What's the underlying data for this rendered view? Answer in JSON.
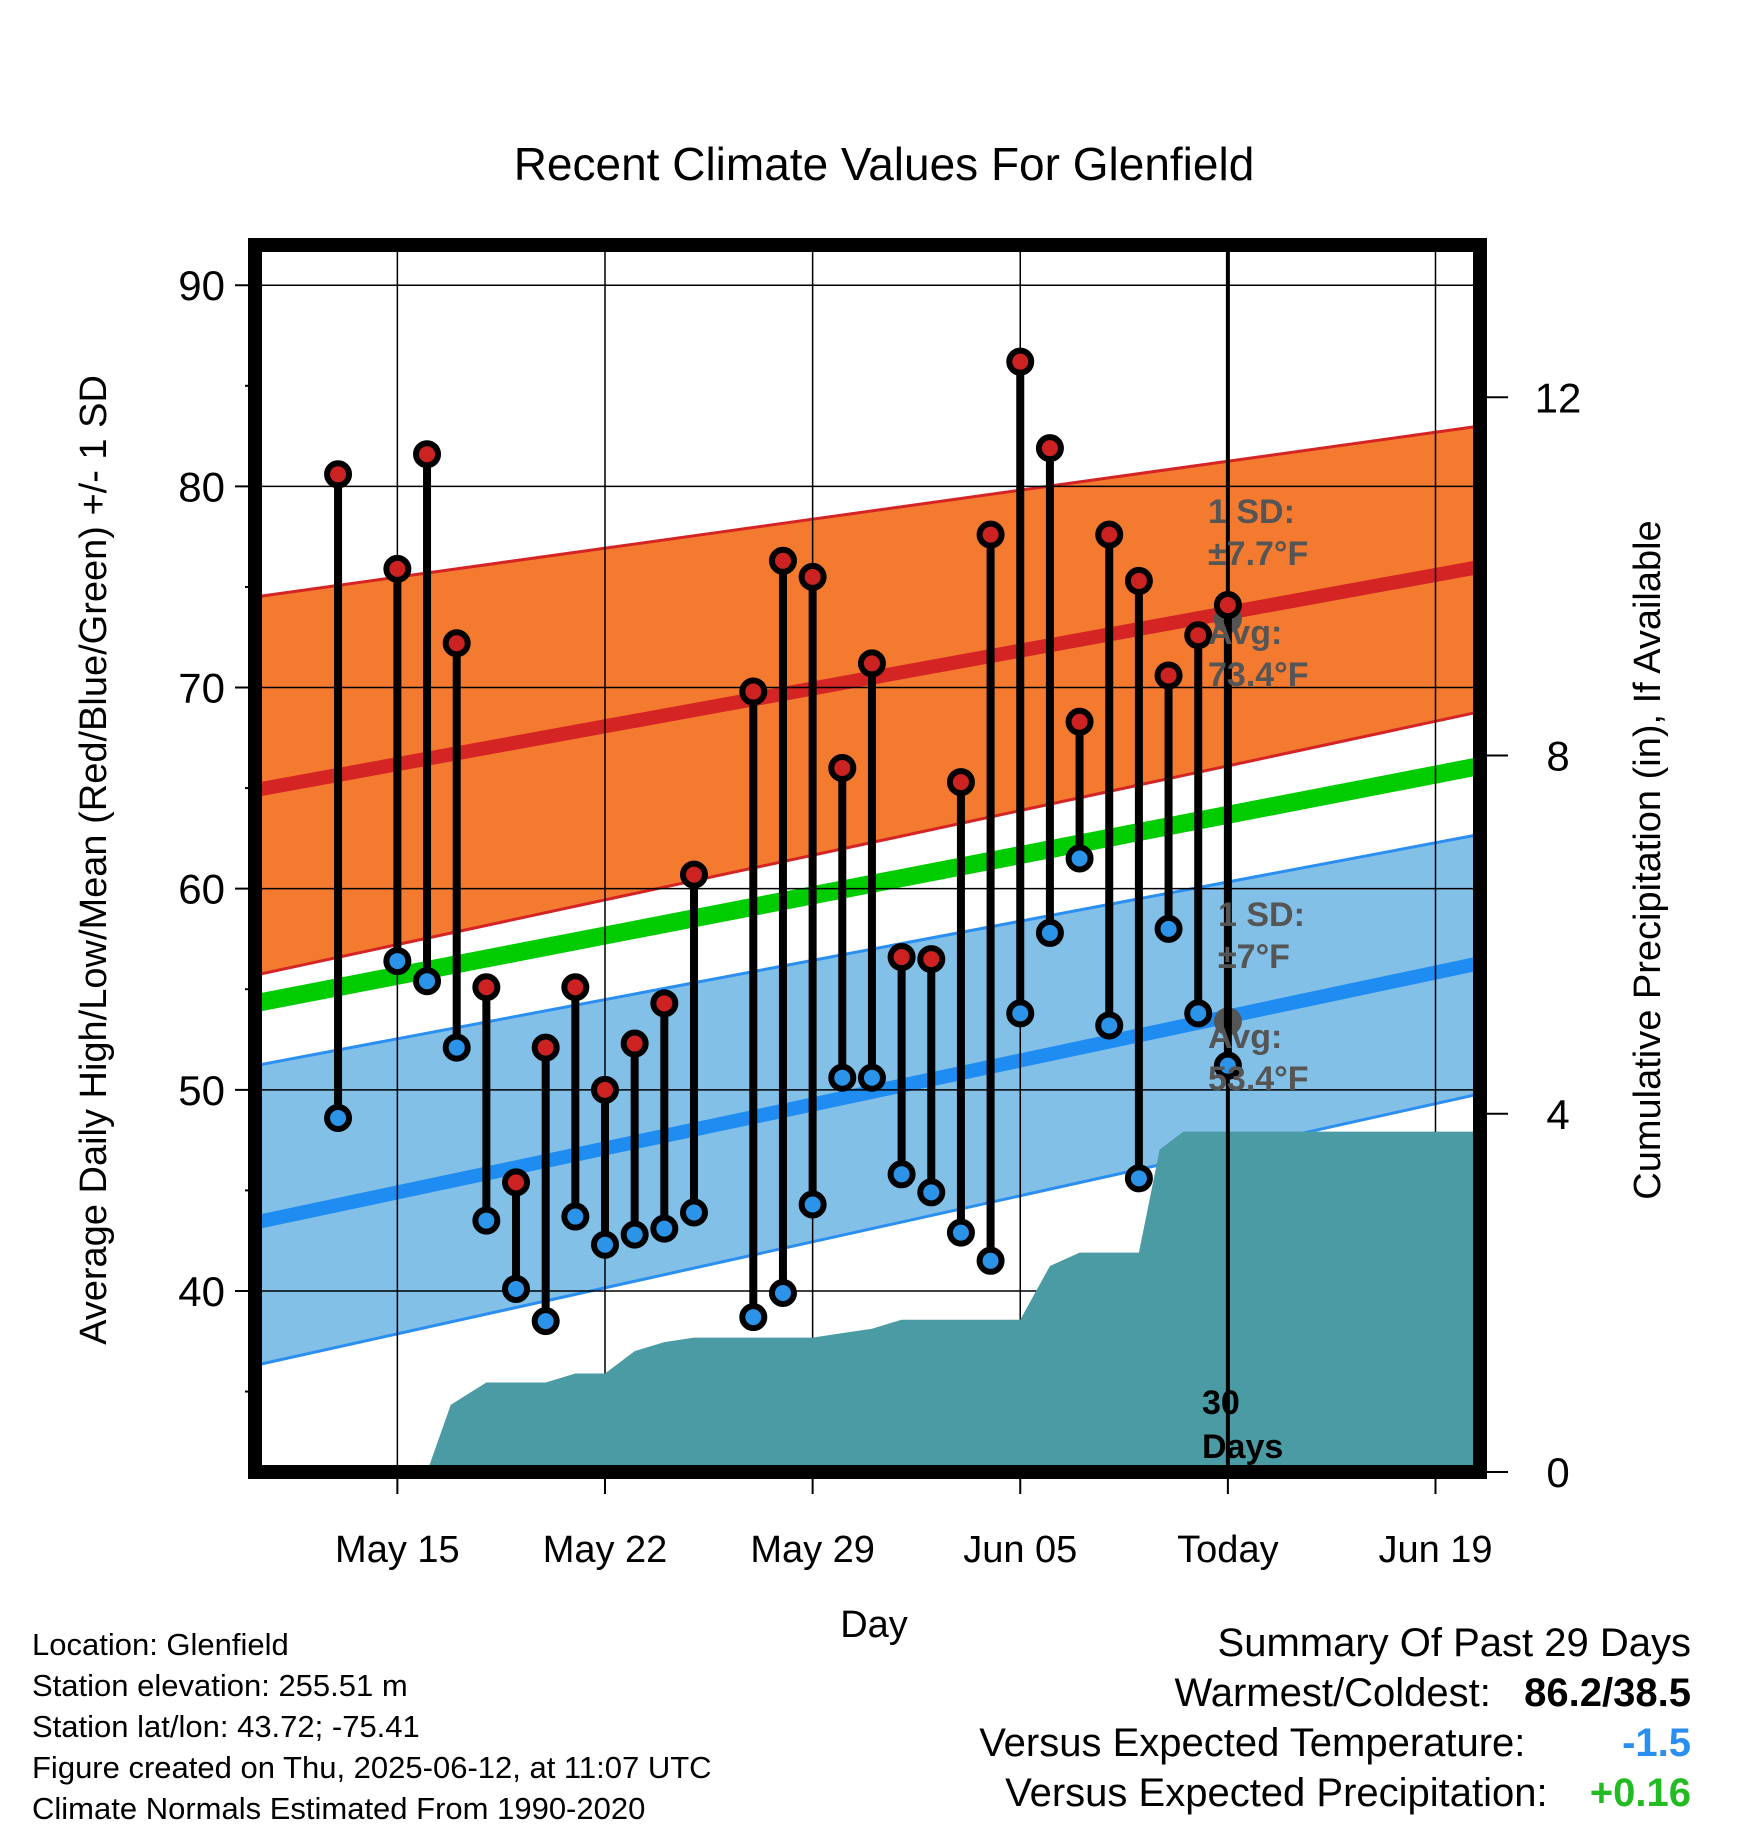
{
  "colors": {
    "high_dot": "#cc2222",
    "low_dot": "#2b94e8",
    "high_band": "#f47a30",
    "high_band_edge": "#d42424",
    "high_avg_line": "#d42424",
    "low_band": "#82c0e8",
    "low_band_edge": "#2a8ff0",
    "low_avg_line": "#1e8cf0",
    "mean_line": "#00cc00",
    "precip_fill": "#4a9ba4",
    "today_marker": "#555555",
    "annotation_text": "#555555",
    "temp_anomaly": "#2a8ff0",
    "precip_anomaly": "#22bb22"
  },
  "chart_data": {
    "type": "line",
    "title": "Recent Climate Values For Glenfield",
    "xlabel": "Day",
    "ylabel": "Average Daily High/Low/Mean (Red/Blue/Green) +/- 1 SD",
    "y2label": "Cumulative Precipitation (in), If Available",
    "xlim_days": [
      -32.8,
      8.5
    ],
    "ylim": [
      31,
      92
    ],
    "y2lim": [
      0,
      13.7
    ],
    "yticks": [
      40,
      50,
      60,
      70,
      80,
      90
    ],
    "y2ticks": [
      0,
      4,
      8,
      12
    ],
    "xticks": [
      {
        "day": -28,
        "label": "May 15"
      },
      {
        "day": -21,
        "label": "May 22"
      },
      {
        "day": -14,
        "label": "May 29"
      },
      {
        "day": -7,
        "label": "Jun 05"
      },
      {
        "day": 0,
        "label": "Today"
      },
      {
        "day": 7,
        "label": "Jun 19"
      }
    ],
    "grid": true,
    "today_line_label": "30 Days",
    "daily": [
      {
        "day": -30,
        "high": 80.6,
        "low": 48.6
      },
      {
        "day": -28,
        "high": 75.9,
        "low": 56.4
      },
      {
        "day": -27,
        "high": 81.6,
        "low": 55.4
      },
      {
        "day": -26,
        "high": 72.2,
        "low": 52.1
      },
      {
        "day": -25,
        "high": 55.1,
        "low": 43.5
      },
      {
        "day": -24,
        "high": 45.4,
        "low": 40.1
      },
      {
        "day": -23,
        "high": 52.1,
        "low": 38.5
      },
      {
        "day": -22,
        "high": 55.1,
        "low": 43.7
      },
      {
        "day": -21,
        "high": 50.0,
        "low": 42.3
      },
      {
        "day": -20,
        "high": 52.3,
        "low": 42.8
      },
      {
        "day": -19,
        "high": 54.3,
        "low": 43.1
      },
      {
        "day": -18,
        "high": 60.7,
        "low": 43.9
      },
      {
        "day": -16,
        "high": 69.8,
        "low": 38.7
      },
      {
        "day": -15,
        "high": 76.3,
        "low": 39.9
      },
      {
        "day": -14,
        "high": 75.5,
        "low": 44.3
      },
      {
        "day": -13,
        "high": 66.0,
        "low": 50.6
      },
      {
        "day": -12,
        "high": 71.2,
        "low": 50.6
      },
      {
        "day": -11,
        "high": 56.6,
        "low": 45.8
      },
      {
        "day": -10,
        "high": 56.5,
        "low": 44.9
      },
      {
        "day": -9,
        "high": 65.3,
        "low": 42.9
      },
      {
        "day": -8,
        "high": 77.6,
        "low": 41.5
      },
      {
        "day": -7,
        "high": 86.2,
        "low": 53.8
      },
      {
        "day": -6,
        "high": 81.9,
        "low": 57.8
      },
      {
        "day": -5,
        "high": 68.3,
        "low": 61.5
      },
      {
        "day": -4,
        "high": 77.6,
        "low": 53.2
      },
      {
        "day": -3,
        "high": 75.3,
        "low": 45.6
      },
      {
        "day": -2,
        "high": 70.6,
        "low": 58.0
      },
      {
        "day": -1,
        "high": 72.6,
        "low": 53.8
      },
      {
        "day": 0,
        "high": 74.1,
        "low": 51.2
      }
    ],
    "normals": {
      "days": [
        -32.8,
        8.5
      ],
      "high_avg": [
        64.9,
        76.0
      ],
      "high_upper": [
        74.5,
        83.0
      ],
      "high_lower": [
        55.7,
        68.8
      ],
      "low_avg": [
        43.4,
        56.3
      ],
      "low_upper": [
        51.2,
        62.7
      ],
      "low_lower": [
        36.3,
        49.8
      ],
      "mean_avg": [
        54.3,
        66.1
      ]
    },
    "precip": [
      {
        "day": -28,
        "value": 0
      },
      {
        "day": -27,
        "value": 0
      },
      {
        "day": -26.2,
        "value": 0.75
      },
      {
        "day": -25,
        "value": 1.0
      },
      {
        "day": -23,
        "value": 1.0
      },
      {
        "day": -22,
        "value": 1.1
      },
      {
        "day": -21,
        "value": 1.1
      },
      {
        "day": -20,
        "value": 1.35
      },
      {
        "day": -19,
        "value": 1.45
      },
      {
        "day": -18,
        "value": 1.5
      },
      {
        "day": -14,
        "value": 1.5
      },
      {
        "day": -13,
        "value": 1.55
      },
      {
        "day": -12,
        "value": 1.6
      },
      {
        "day": -11,
        "value": 1.7
      },
      {
        "day": -7,
        "value": 1.7
      },
      {
        "day": -6,
        "value": 2.3
      },
      {
        "day": -5,
        "value": 2.45
      },
      {
        "day": -4,
        "value": 2.45
      },
      {
        "day": -3,
        "value": 2.45
      },
      {
        "day": -2.3,
        "value": 3.6
      },
      {
        "day": -1.5,
        "value": 3.8
      },
      {
        "day": 0,
        "value": 3.8
      },
      {
        "day": 8.5,
        "value": 3.8
      }
    ],
    "today_high_avg": 73.4,
    "today_low_avg": 53.4,
    "annotations": {
      "high_sd_label": "1 SD:",
      "high_sd_value": "±7.7°F",
      "high_avg_label": "Avg:",
      "high_avg_value": "73.4°F",
      "low_sd_label": "1 SD:",
      "low_sd_value": "±7°F",
      "low_avg_label": "Avg:",
      "low_avg_value": "53.4°F"
    }
  },
  "info": {
    "location": "Location: Glenfield",
    "elevation": "Station elevation: 255.51 m",
    "latlon": "Station lat/lon: 43.72; -75.41",
    "created": "Figure created on Thu, 2025-06-12, at 11:07 UTC",
    "normals_period": "Climate Normals Estimated From 1990-2020"
  },
  "summary": {
    "title": "Summary Of Past 29 Days",
    "warmest_coldest_label": "Warmest/Coldest:",
    "warmest_coldest_value": "86.2/38.5",
    "temp_label": "Versus Expected Temperature:",
    "temp_value": "-1.5",
    "precip_label": "Versus Expected Precipitation:",
    "precip_value": "+0.16"
  }
}
